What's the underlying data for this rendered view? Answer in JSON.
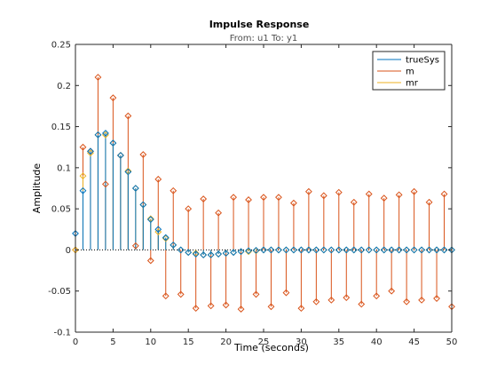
{
  "chart_data": {
    "type": "line",
    "title": "Impulse Response",
    "subtitle": "From: u1  To: y1",
    "xlabel": "Time (seconds)",
    "ylabel": "Amplitude",
    "xlim": [
      0,
      50
    ],
    "ylim": [
      -0.1,
      0.25
    ],
    "x_ticks": [
      0,
      5,
      10,
      15,
      20,
      25,
      30,
      35,
      40,
      45,
      50
    ],
    "y_ticks": [
      -0.1,
      -0.05,
      0,
      0.05,
      0.1,
      0.15,
      0.2,
      0.25
    ],
    "y_tick_labels": [
      "-0.1",
      "-0.05",
      "0",
      "0.05",
      "0.1",
      "0.15",
      "0.2",
      "0.25"
    ],
    "grid": false,
    "legend_position": "top-right",
    "x": [
      0,
      1,
      2,
      3,
      4,
      5,
      6,
      7,
      8,
      9,
      10,
      11,
      12,
      13,
      14,
      15,
      16,
      17,
      18,
      19,
      20,
      21,
      22,
      23,
      24,
      25,
      26,
      27,
      28,
      29,
      30,
      31,
      32,
      33,
      34,
      35,
      36,
      37,
      38,
      39,
      40,
      41,
      42,
      43,
      44,
      45,
      46,
      47,
      48,
      49,
      50
    ],
    "series": [
      {
        "name": "trueSys",
        "color": "#0072BD",
        "values": [
          0.02,
          0.072,
          0.12,
          0.14,
          0.142,
          0.13,
          0.115,
          0.095,
          0.075,
          0.055,
          0.037,
          0.025,
          0.015,
          0.006,
          0.0,
          -0.003,
          -0.005,
          -0.006,
          -0.006,
          -0.005,
          -0.004,
          -0.003,
          -0.002,
          -0.001,
          -0.0005,
          0,
          0,
          0,
          0,
          0,
          0,
          0,
          0,
          0,
          0,
          0,
          0,
          0,
          0,
          0,
          0,
          0,
          0,
          0,
          0,
          0,
          0,
          0,
          0,
          0,
          0
        ]
      },
      {
        "name": "m",
        "color": "#D95319",
        "values": [
          0.0,
          0.125,
          0.12,
          0.21,
          0.08,
          0.185,
          0.115,
          0.163,
          0.005,
          0.116,
          -0.013,
          0.086,
          -0.056,
          0.072,
          -0.054,
          0.05,
          -0.071,
          0.062,
          -0.068,
          0.045,
          -0.067,
          0.064,
          -0.072,
          0.061,
          -0.054,
          0.064,
          -0.069,
          0.064,
          -0.052,
          0.057,
          -0.071,
          0.071,
          -0.063,
          0.066,
          -0.061,
          0.07,
          -0.058,
          0.058,
          -0.066,
          0.068,
          -0.056,
          0.063,
          -0.05,
          0.067,
          -0.063,
          0.071,
          -0.061,
          0.058,
          -0.059,
          0.068,
          -0.069
        ]
      },
      {
        "name": "mr",
        "color": "#EDB120",
        "values": [
          0.0,
          0.09,
          0.118,
          0.14,
          0.14,
          0.13,
          0.115,
          0.096,
          0.075,
          0.055,
          0.038,
          0.022,
          0.014,
          0.006,
          0.0,
          -0.003,
          -0.004,
          -0.006,
          -0.006,
          -0.005,
          -0.004,
          -0.003,
          -0.002,
          -0.002,
          -0.001,
          0,
          0,
          0,
          0,
          0,
          0,
          0,
          0,
          0,
          0,
          0,
          0,
          0,
          0,
          0,
          0,
          0,
          0,
          0,
          0,
          0,
          0,
          0,
          0,
          0,
          0
        ]
      }
    ]
  }
}
